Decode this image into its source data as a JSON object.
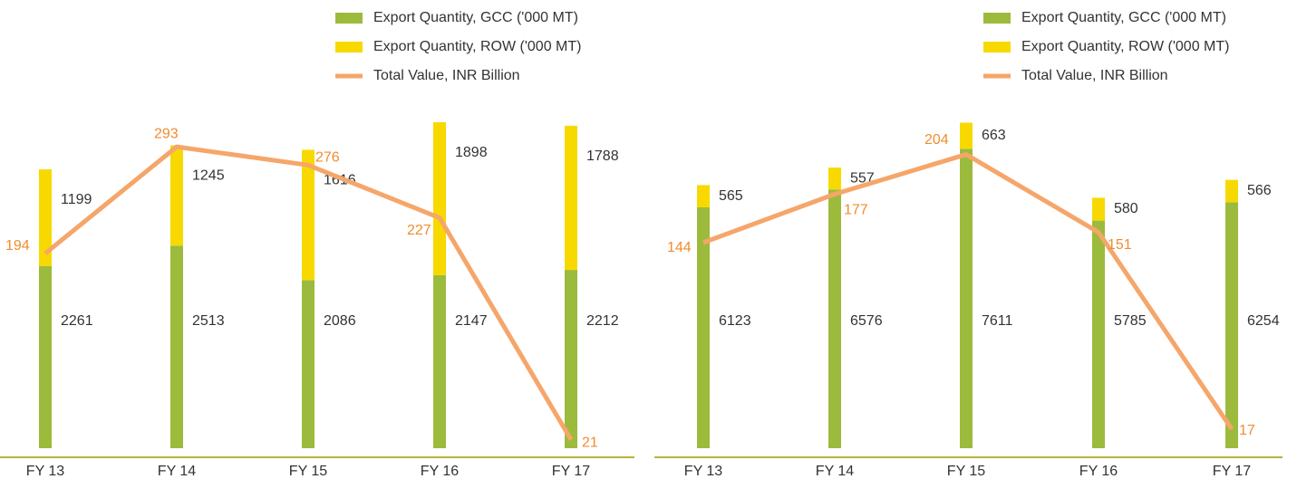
{
  "chart_data": [
    {
      "type": "bar-line",
      "categories": [
        "FY 13",
        "FY 14",
        "FY 15",
        "FY 16",
        "FY 17"
      ],
      "series": [
        {
          "name": "Export Quantity, GCC ('000 MT)",
          "color": "#9cbb3c",
          "values": [
            2261,
            2513,
            2086,
            2147,
            2212
          ]
        },
        {
          "name": "Export Quantity, ROW ('000 MT)",
          "color": "#f7d900",
          "values": [
            1199,
            1245,
            1616,
            1898,
            1788
          ]
        },
        {
          "name": "Total Value, INR Billion",
          "color": "#f5a66a",
          "axis": "y2",
          "values": [
            194,
            293,
            276,
            227,
            21
          ]
        }
      ],
      "ylim": [
        0,
        4100
      ],
      "y2lim": [
        13,
        320
      ]
    },
    {
      "type": "bar-line",
      "categories": [
        "FY 13",
        "FY 14",
        "FY 15",
        "FY 16",
        "FY 17"
      ],
      "series": [
        {
          "name": "Export Quantity, GCC ('000 MT)",
          "color": "#9cbb3c",
          "values": [
            6123,
            6576,
            7611,
            5785,
            6254
          ]
        },
        {
          "name": "Export Quantity, ROW ('000 MT)",
          "color": "#f7d900",
          "values": [
            565,
            557,
            663,
            580,
            566
          ]
        },
        {
          "name": "Total Value, INR Billion",
          "color": "#f5a66a",
          "axis": "y2",
          "values": [
            144,
            177,
            204,
            151,
            17
          ]
        }
      ],
      "ylim": [
        0,
        8400
      ],
      "y2lim": [
        4,
        229
      ]
    }
  ]
}
